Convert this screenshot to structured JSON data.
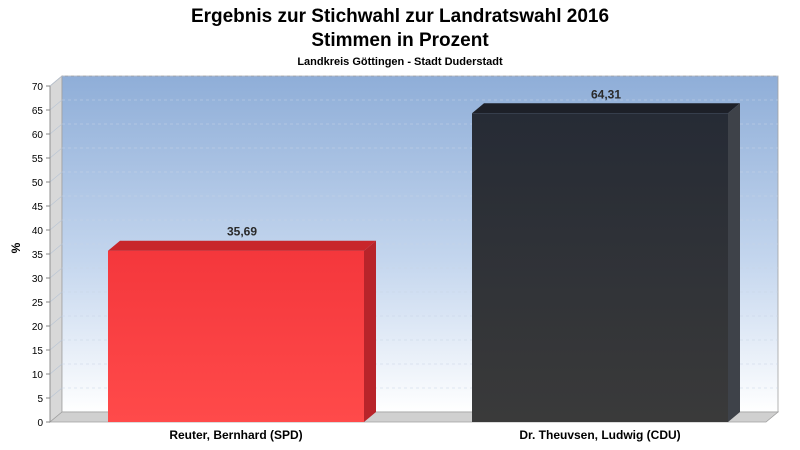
{
  "chart_data": {
    "type": "bar",
    "title": "Ergebnis zur Stichwahl zur Landratswahl 2016",
    "title_line2": "Stimmen in Prozent",
    "subtitle": "Landkreis Göttingen - Stadt Duderstadt",
    "xlabel": "",
    "ylabel": "%",
    "ylim": [
      0,
      70
    ],
    "yticks": [
      0,
      5,
      10,
      15,
      20,
      25,
      30,
      35,
      40,
      45,
      50,
      55,
      60,
      65,
      70
    ],
    "grid": true,
    "legend": "none",
    "categories": [
      "Reuter, Bernhard (SPD)",
      "Dr.  Theuvsen, Ludwig (CDU)"
    ],
    "values": [
      35.69,
      64.31
    ],
    "value_labels": [
      "35,69",
      "64,31"
    ],
    "colors": [
      "#ff2d2d",
      "#2d3035"
    ]
  }
}
